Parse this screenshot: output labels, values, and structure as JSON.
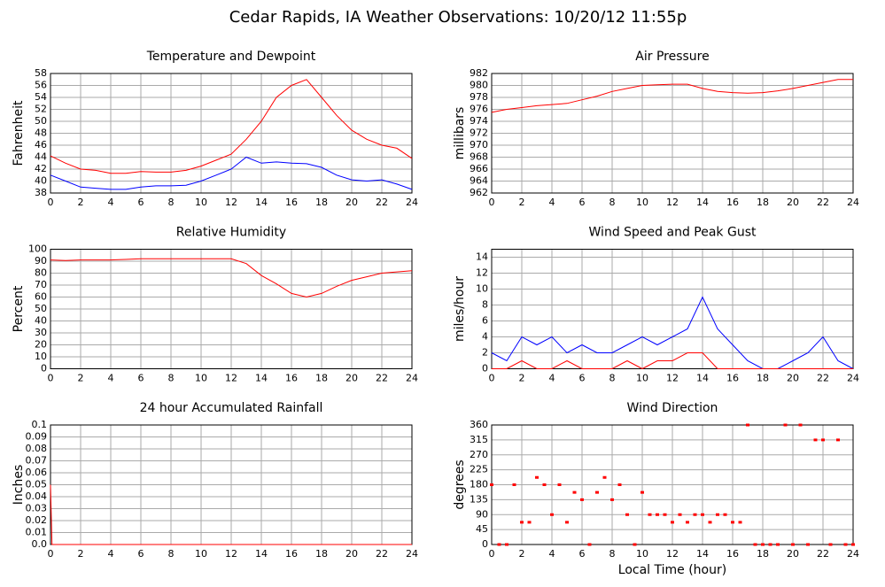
{
  "title": "Cedar Rapids, IA Weather Observations: 10/20/12 11:55p",
  "chart_data": [
    {
      "type": "line",
      "title": "Temperature and Dewpoint",
      "ylabel": "Fahrenheit",
      "grid": true,
      "x": [
        0,
        1,
        2,
        3,
        4,
        5,
        6,
        7,
        8,
        9,
        10,
        11,
        12,
        13,
        14,
        15,
        16,
        17,
        18,
        19,
        20,
        21,
        22,
        23,
        24
      ],
      "xlim": [
        0,
        24
      ],
      "xticks": [
        0,
        2,
        4,
        6,
        8,
        10,
        12,
        14,
        16,
        18,
        20,
        22,
        24
      ],
      "ylim": [
        38,
        58
      ],
      "yticks": [
        38,
        40,
        42,
        44,
        46,
        48,
        50,
        52,
        54,
        56,
        58
      ],
      "series": [
        {
          "name": "Temperature",
          "color": "#ff0000",
          "values": [
            44.2,
            43,
            42,
            41.8,
            41.3,
            41.3,
            41.6,
            41.5,
            41.5,
            41.8,
            42.5,
            43.5,
            44.5,
            47,
            50,
            54,
            56,
            57,
            54,
            51,
            48.5,
            47,
            46,
            45.5,
            43.8
          ]
        },
        {
          "name": "Dewpoint",
          "color": "#0000ff",
          "values": [
            41,
            40,
            39,
            38.8,
            38.6,
            38.6,
            39,
            39.2,
            39.2,
            39.3,
            40,
            41,
            42,
            44,
            43,
            43.2,
            43,
            42.9,
            42.3,
            41,
            40.2,
            40,
            40.2,
            39.5,
            38.6
          ]
        }
      ]
    },
    {
      "type": "line",
      "title": "Air Pressure",
      "ylabel": "millibars",
      "grid": true,
      "x": [
        0,
        1,
        2,
        3,
        4,
        5,
        6,
        7,
        8,
        9,
        10,
        11,
        12,
        13,
        14,
        15,
        16,
        17,
        18,
        19,
        20,
        21,
        22,
        23,
        24
      ],
      "xlim": [
        0,
        24
      ],
      "xticks": [
        0,
        2,
        4,
        6,
        8,
        10,
        12,
        14,
        16,
        18,
        20,
        22,
        24
      ],
      "ylim": [
        962,
        982
      ],
      "yticks": [
        962,
        964,
        966,
        968,
        970,
        972,
        974,
        976,
        978,
        980,
        982
      ],
      "series": [
        {
          "name": "Pressure",
          "color": "#ff0000",
          "values": [
            975.5,
            976,
            976.3,
            976.6,
            976.8,
            977,
            977.6,
            978.2,
            979,
            979.5,
            980,
            980.1,
            980.2,
            980.2,
            979.5,
            979,
            978.8,
            978.7,
            978.8,
            979.1,
            979.5,
            980,
            980.5,
            981,
            981
          ]
        }
      ]
    },
    {
      "type": "line",
      "title": "Relative Humidity",
      "ylabel": "Percent",
      "grid": true,
      "x": [
        0,
        1,
        2,
        3,
        4,
        5,
        6,
        7,
        8,
        9,
        10,
        11,
        12,
        13,
        14,
        15,
        16,
        17,
        18,
        19,
        20,
        21,
        22,
        23,
        24
      ],
      "xlim": [
        0,
        24
      ],
      "xticks": [
        0,
        2,
        4,
        6,
        8,
        10,
        12,
        14,
        16,
        18,
        20,
        22,
        24
      ],
      "ylim": [
        0,
        100
      ],
      "yticks": [
        0,
        10,
        20,
        30,
        40,
        50,
        60,
        70,
        80,
        90,
        100
      ],
      "series": [
        {
          "name": "Humidity",
          "color": "#ff0000",
          "values": [
            91,
            90.5,
            91,
            91,
            91,
            91.5,
            92,
            92,
            92,
            92,
            92,
            92,
            92,
            88,
            78,
            71,
            63,
            60,
            63,
            69,
            74,
            77,
            80,
            81,
            82
          ]
        }
      ]
    },
    {
      "type": "line",
      "title": "Wind Speed and Peak Gust",
      "ylabel": "miles/hour",
      "grid": true,
      "x": [
        0,
        1,
        2,
        3,
        4,
        5,
        6,
        7,
        8,
        9,
        10,
        11,
        12,
        13,
        14,
        15,
        16,
        17,
        18,
        19,
        20,
        21,
        22,
        23,
        24
      ],
      "xlim": [
        0,
        24
      ],
      "xticks": [
        0,
        2,
        4,
        6,
        8,
        10,
        12,
        14,
        16,
        18,
        20,
        22,
        24
      ],
      "ylim": [
        0,
        15
      ],
      "yticks": [
        0,
        2,
        4,
        6,
        8,
        10,
        12,
        14
      ],
      "series": [
        {
          "name": "Wind Speed",
          "color": "#0000ff",
          "values": [
            2,
            1,
            4,
            3,
            4,
            2,
            3,
            2,
            2,
            3,
            4,
            3,
            4,
            5,
            9,
            5,
            3,
            1,
            0,
            0,
            1,
            2,
            4,
            1,
            0
          ]
        },
        {
          "name": "Peak Gust",
          "color": "#ff0000",
          "values": [
            0,
            0,
            1,
            0,
            0,
            1,
            0,
            0,
            0,
            1,
            0,
            1,
            1,
            2,
            2,
            0,
            0,
            0,
            0,
            0,
            0,
            0,
            0,
            0,
            0
          ]
        }
      ]
    },
    {
      "type": "line",
      "title": "24 hour Accumulated Rainfall",
      "ylabel": "Inches",
      "grid": true,
      "x": [
        0,
        0.1,
        1,
        2,
        3,
        4,
        5,
        6,
        7,
        8,
        9,
        10,
        11,
        12,
        13,
        14,
        15,
        16,
        17,
        18,
        19,
        20,
        21,
        22,
        23,
        24
      ],
      "xlim": [
        0,
        24
      ],
      "xticks": [
        0,
        2,
        4,
        6,
        8,
        10,
        12,
        14,
        16,
        18,
        20,
        22,
        24
      ],
      "ylim": [
        0,
        0.1
      ],
      "yticks": [
        {
          "value": 0,
          "label": "0.0"
        },
        0.01,
        0.02,
        0.03,
        0.04,
        0.05,
        0.06,
        0.07,
        0.08,
        0.09,
        0.1
      ],
      "series": [
        {
          "name": "Rainfall",
          "color": "#ff0000",
          "values": [
            0.05,
            0,
            0,
            0,
            0,
            0,
            0,
            0,
            0,
            0,
            0,
            0,
            0,
            0,
            0,
            0,
            0,
            0,
            0,
            0,
            0,
            0,
            0,
            0,
            0,
            0
          ]
        }
      ]
    },
    {
      "type": "scatter",
      "title": "Wind Direction",
      "ylabel": "degrees",
      "xlabel": "Local Time (hour)",
      "grid": true,
      "x": [
        0,
        0.5,
        1,
        1.5,
        2,
        2.5,
        3,
        3.5,
        4,
        4.5,
        5,
        5.5,
        6,
        6.5,
        7,
        7.5,
        8,
        8.5,
        9,
        9.5,
        10,
        10.5,
        11,
        11.5,
        12,
        12.5,
        13,
        13.5,
        14,
        14.5,
        15,
        15.5,
        16,
        16.5,
        17,
        17.5,
        18,
        18.5,
        19,
        19.5,
        20,
        20.5,
        21,
        21.5,
        22,
        22.5,
        23,
        23.5,
        24
      ],
      "xlim": [
        0,
        24
      ],
      "xticks": [
        0,
        2,
        4,
        6,
        8,
        10,
        12,
        14,
        16,
        18,
        20,
        22,
        24
      ],
      "ylim": [
        0,
        360
      ],
      "yticks": [
        0,
        45,
        90,
        135,
        180,
        225,
        270,
        315,
        360
      ],
      "series": [
        {
          "name": "Direction",
          "color": "#ff0000",
          "values": [
            180,
            0,
            0,
            180,
            67,
            67,
            202,
            180,
            90,
            180,
            67,
            157,
            135,
            0,
            157,
            202,
            135,
            180,
            90,
            0,
            157,
            90,
            90,
            90,
            67,
            90,
            67,
            90,
            90,
            67,
            90,
            90,
            67,
            67,
            360,
            0,
            0,
            0,
            0,
            360,
            0,
            360,
            0,
            315,
            315,
            0,
            315,
            0,
            0
          ]
        }
      ]
    }
  ]
}
